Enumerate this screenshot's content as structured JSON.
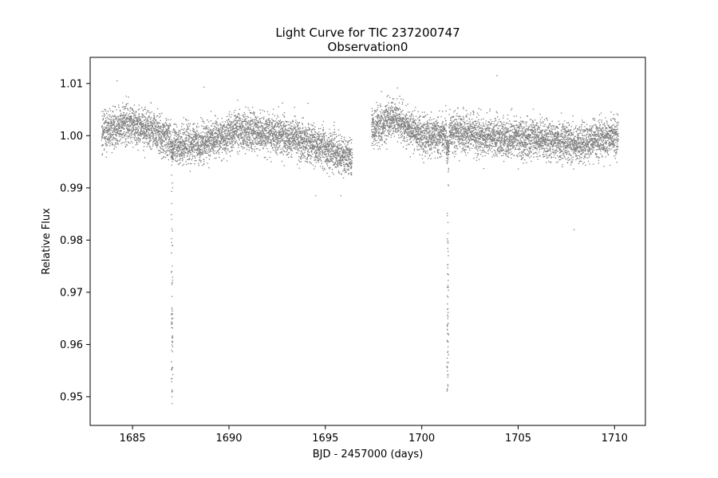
{
  "chart_data": {
    "type": "scatter",
    "title": "Light Curve for TIC 237200747",
    "subtitle": "Observation0",
    "xlabel": "BJD - 2457000 (days)",
    "ylabel": "Relative Flux",
    "xlim": [
      1682.8,
      1711.6
    ],
    "ylim": [
      0.9445,
      1.015
    ],
    "xticks": [
      1685,
      1690,
      1695,
      1700,
      1705,
      1710
    ],
    "yticks": [
      0.95,
      0.96,
      0.97,
      0.98,
      0.99,
      1.0,
      1.01
    ],
    "ytick_labels": [
      "0.95",
      "0.96",
      "0.97",
      "0.98",
      "0.99",
      "1.00",
      "1.01"
    ],
    "grid": false,
    "marker_color": "#7f7f7f",
    "series": [
      {
        "segments": [
          {
            "x_start": 1683.4,
            "x_end": 1696.4
          },
          {
            "x_start": 1697.4,
            "x_end": 1710.2
          }
        ],
        "baseline_trend": [
          {
            "x": 1683.4,
            "y": 1.001
          },
          {
            "x": 1685.0,
            "y": 1.0022
          },
          {
            "x": 1686.5,
            "y": 1.0
          },
          {
            "x": 1687.5,
            "y": 0.998
          },
          {
            "x": 1689.0,
            "y": 0.999
          },
          {
            "x": 1690.5,
            "y": 1.001
          },
          {
            "x": 1692.0,
            "y": 1.0005
          },
          {
            "x": 1694.0,
            "y": 0.999
          },
          {
            "x": 1696.4,
            "y": 0.9955
          },
          {
            "x": 1697.4,
            "y": 1.001
          },
          {
            "x": 1698.5,
            "y": 1.0035
          },
          {
            "x": 1700.0,
            "y": 1.0
          },
          {
            "x": 1702.0,
            "y": 1.0005
          },
          {
            "x": 1704.0,
            "y": 0.9995
          },
          {
            "x": 1706.0,
            "y": 0.9995
          },
          {
            "x": 1708.0,
            "y": 0.9985
          },
          {
            "x": 1710.2,
            "y": 1.0
          }
        ],
        "scatter_sigma": 0.0018,
        "transits": [
          {
            "center": 1687.05,
            "min_flux": 0.948
          },
          {
            "center": 1701.35,
            "min_flux": 0.95
          }
        ],
        "outliers": [
          {
            "x": 1684.2,
            "y": 1.0105
          },
          {
            "x": 1688.7,
            "y": 1.0093
          },
          {
            "x": 1703.9,
            "y": 1.0115
          },
          {
            "x": 1707.9,
            "y": 0.982
          },
          {
            "x": 1694.5,
            "y": 0.9885
          },
          {
            "x": 1695.8,
            "y": 0.9885
          }
        ]
      }
    ]
  }
}
